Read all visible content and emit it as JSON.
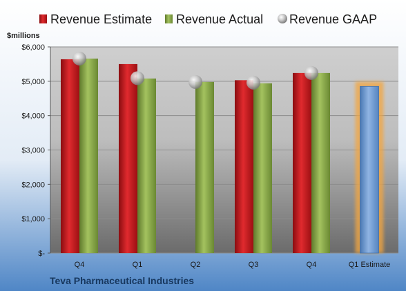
{
  "chart_data": {
    "type": "bar",
    "ylabel": "$millions",
    "company": "Teva Pharmaceutical Industries",
    "categories": [
      "Q4",
      "Q1",
      "Q2",
      "Q3",
      "Q4",
      "Q1 Estimate"
    ],
    "ylim": [
      0,
      6000
    ],
    "yticks": [
      0,
      1000,
      2000,
      3000,
      4000,
      5000,
      6000
    ],
    "ytick_labels": [
      "$-",
      "$1,000",
      "$2,000",
      "$3,000",
      "$4,000",
      "$5,000",
      "$6,000"
    ],
    "grid": true,
    "legend_position": "top",
    "series": [
      {
        "name": "Revenue Estimate",
        "kind": "bar",
        "color": "#c0171b",
        "values": [
          5640,
          5500,
          null,
          5030,
          5240,
          null
        ]
      },
      {
        "name": "Revenue Actual",
        "kind": "bar",
        "color": "#8aa847",
        "values": [
          5660,
          5080,
          4980,
          4940,
          5240,
          null
        ]
      },
      {
        "name": "Revenue GAAP",
        "kind": "marker",
        "color": "#b8b8b8",
        "values": [
          5660,
          5090,
          4980,
          4960,
          5240,
          null
        ]
      }
    ],
    "estimate": {
      "category": "Q1 Estimate",
      "value": 4850,
      "color": "#6f9bd1",
      "highlight_color": "#f3a641"
    }
  }
}
